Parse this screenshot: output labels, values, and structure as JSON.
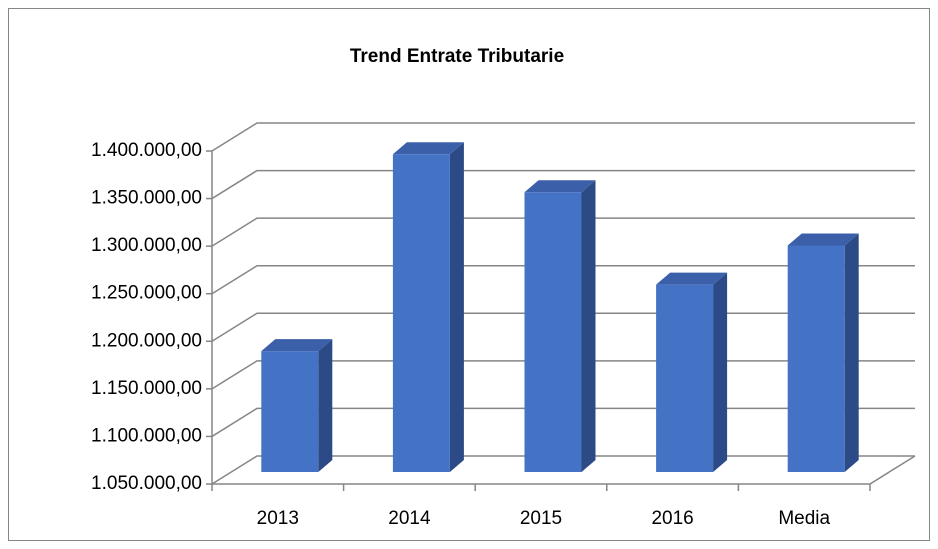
{
  "chart_data": {
    "type": "bar3d",
    "title": "Trend Entrate Tributarie",
    "categories": [
      "2013",
      "2014",
      "2015",
      "2016",
      "Media"
    ],
    "values": [
      1177000,
      1384000,
      1344000,
      1247000,
      1288000
    ],
    "color": "#4472c4",
    "ylim": [
      1050000,
      1400000
    ],
    "yticks": [
      {
        "value": 1050000,
        "label": "1.050.000,00"
      },
      {
        "value": 1100000,
        "label": "1.100.000,00"
      },
      {
        "value": 1150000,
        "label": "1.150.000,00"
      },
      {
        "value": 1200000,
        "label": "1.200.000,00"
      },
      {
        "value": 1250000,
        "label": "1.250.000,00"
      },
      {
        "value": 1300000,
        "label": "1.300.000,00"
      },
      {
        "value": 1350000,
        "label": "1.350.000,00"
      },
      {
        "value": 1400000,
        "label": "1.400.000,00"
      }
    ],
    "grid": true
  }
}
